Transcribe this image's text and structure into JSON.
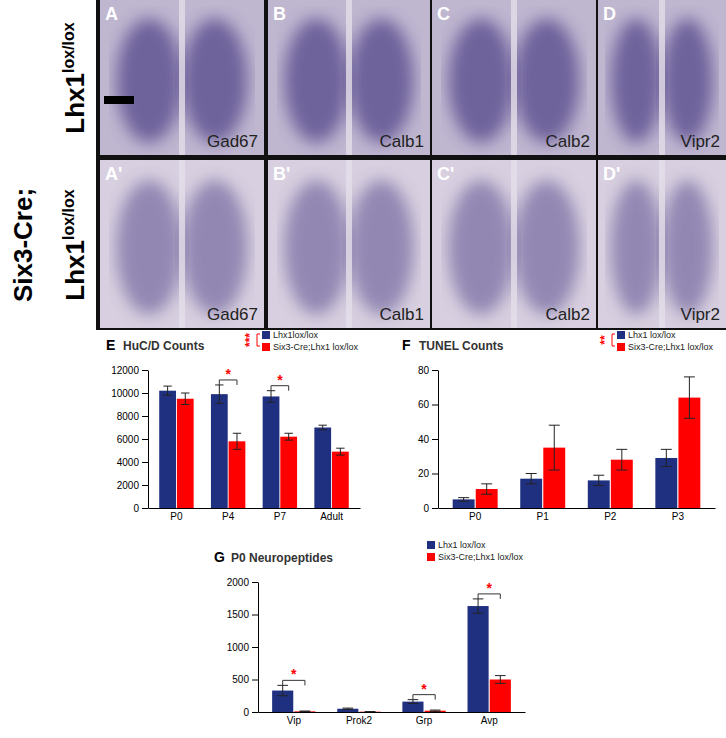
{
  "row_labels": [
    {
      "text": "Lhx1",
      "superscript": "lox/lox"
    },
    {
      "prefix": "Six3-Cre;",
      "text": "Lhx1",
      "superscript": "lox/lox"
    }
  ],
  "image_panels": [
    {
      "letter": "A",
      "label": "Gad67"
    },
    {
      "letter": "B",
      "label": "Calb1"
    },
    {
      "letter": "C",
      "label": "Calb2"
    },
    {
      "letter": "D",
      "label": "Vipr2"
    },
    {
      "letter": "A'",
      "label": "Gad67"
    },
    {
      "letter": "B'",
      "label": "Calb1"
    },
    {
      "letter": "C'",
      "label": "Calb2"
    },
    {
      "letter": "D'",
      "label": "Vipr2"
    }
  ],
  "chart_data": [
    {
      "type": "bar",
      "panel": "E",
      "title": "HuC/D Counts",
      "categories": [
        "P0",
        "P4",
        "P7",
        "Adult"
      ],
      "series": [
        {
          "name": "Lhx1lox/lox",
          "color": "#203080",
          "values": [
            10200,
            9900,
            9700,
            7000
          ],
          "errors": [
            400,
            800,
            500,
            200
          ]
        },
        {
          "name": "Six3-Cre;Lhx1 lox/lox",
          "color": "#ff0000",
          "values": [
            9500,
            5800,
            6200,
            4900
          ],
          "errors": [
            500,
            700,
            300,
            300
          ]
        }
      ],
      "ylim": [
        0,
        12000
      ],
      "yticks": [
        0,
        2000,
        4000,
        6000,
        8000,
        10000,
        12000
      ],
      "legend": "top-right",
      "legend_annotation": "***",
      "significance": [
        {
          "category": "P4",
          "label": "*"
        },
        {
          "category": "P7",
          "label": "*"
        }
      ]
    },
    {
      "type": "bar",
      "panel": "F",
      "title": "TUNEL Counts",
      "categories": [
        "P0",
        "P1",
        "P2",
        "P3"
      ],
      "series": [
        {
          "name": "Lhx1 lox/lox",
          "color": "#203080",
          "values": [
            5,
            17,
            16,
            29
          ],
          "errors": [
            1,
            3,
            3,
            5
          ]
        },
        {
          "name": "Six3-Cre;Lhx1 lox/lox",
          "color": "#ff0000",
          "values": [
            11,
            35,
            28,
            64
          ],
          "errors": [
            3,
            13,
            6,
            12
          ]
        }
      ],
      "ylim": [
        0,
        80
      ],
      "yticks": [
        0,
        20,
        40,
        60,
        80
      ],
      "legend": "top-right",
      "legend_annotation": "**",
      "significance": []
    },
    {
      "type": "bar",
      "panel": "G",
      "title": "P0 Neuropeptides",
      "categories": [
        "Vip",
        "Prok2",
        "Grp",
        "Avp"
      ],
      "series": [
        {
          "name": "Lhx1 lox/lox",
          "color": "#203080",
          "values": [
            330,
            50,
            160,
            1630
          ],
          "errors": [
            80,
            10,
            30,
            110
          ]
        },
        {
          "name": "Six3-Cre;Lhx1 lox/lox",
          "color": "#ff0000",
          "values": [
            10,
            5,
            20,
            500
          ],
          "errors": [
            5,
            2,
            10,
            60
          ]
        }
      ],
      "ylim": [
        0,
        2000
      ],
      "yticks": [
        0,
        500,
        1000,
        1500,
        2000
      ],
      "legend": "top-right",
      "significance": [
        {
          "category": "Vip",
          "label": "*"
        },
        {
          "category": "Grp",
          "label": "*"
        },
        {
          "category": "Avp",
          "label": "*"
        }
      ]
    }
  ]
}
